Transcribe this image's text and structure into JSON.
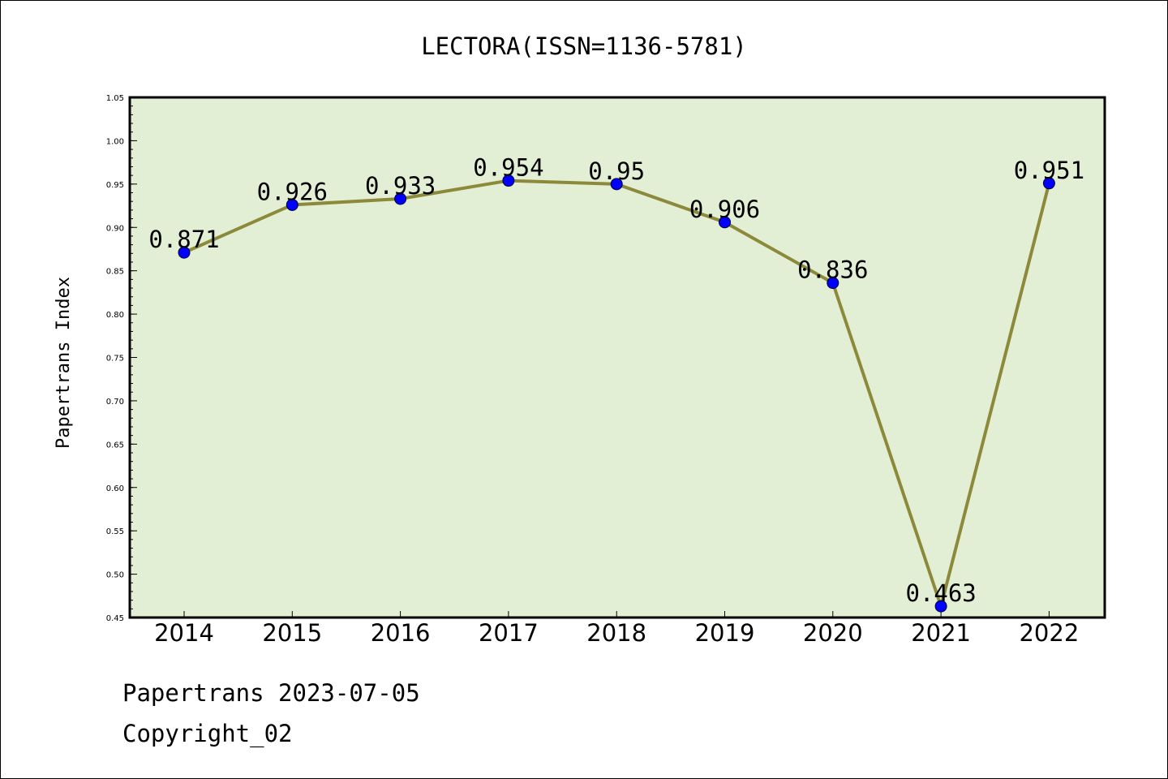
{
  "chart_data": {
    "type": "line",
    "title": "LECTORA(ISSN=1136-5781)",
    "ylabel": "Papertrans Index",
    "xlabel": "",
    "categories": [
      "2014",
      "2015",
      "2016",
      "2017",
      "2018",
      "2019",
      "2020",
      "2021",
      "2022"
    ],
    "values": [
      0.871,
      0.926,
      0.933,
      0.954,
      0.95,
      0.906,
      0.836,
      0.463,
      0.951
    ],
    "data_labels": [
      "0.871",
      "0.926",
      "0.933",
      "0.954",
      "0.95",
      "0.906",
      "0.836",
      "0.463",
      "0.951"
    ],
    "ylim": [
      0.45,
      1.05
    ],
    "yticks": [
      "0.45",
      "0.50",
      "0.55",
      "0.60",
      "0.65",
      "0.70",
      "0.75",
      "0.80",
      "0.85",
      "0.90",
      "0.95",
      "1.00",
      "1.05"
    ],
    "grid": false,
    "colors": {
      "plot_background": "#e2efd5",
      "line": "#8c8a3a",
      "marker": "#0000ff"
    }
  },
  "footer": {
    "line1": "Papertrans 2023-07-05",
    "line2": "Copyright_02"
  }
}
